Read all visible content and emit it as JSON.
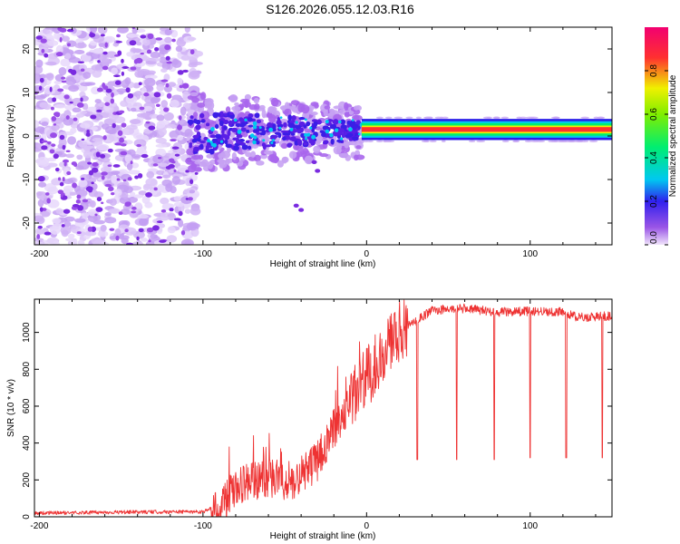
{
  "title": "S126.2026.055.12.03.R16",
  "chart_data": [
    {
      "type": "heatmap",
      "xlabel": "Height of straight line (km)",
      "ylabel": "Frequency (Hz)",
      "xlim": [
        -203,
        150
      ],
      "ylim": [
        -25,
        25
      ],
      "x_ticks": [
        "-200",
        "-100",
        "0",
        "100"
      ],
      "x_tick_values": [
        -200,
        -100,
        0,
        100
      ],
      "y_ticks": [
        "20",
        "10",
        "0",
        "-10",
        "-20"
      ],
      "y_tick_values": [
        20,
        10,
        0,
        -10,
        -20
      ],
      "colorbar": {
        "label": "Normalized spectral amplitude",
        "range": [
          0,
          1
        ],
        "ticks": [
          "0.0",
          "0.2",
          "0.4",
          "0.6",
          "0.8"
        ],
        "tick_values": [
          0.0,
          0.2,
          0.4,
          0.6,
          0.8
        ]
      },
      "regions": [
        {
          "name": "noise",
          "x_range": [
            -203,
            -103
          ],
          "freq_range": [
            -25,
            25
          ],
          "amplitude": 0.1
        },
        {
          "name": "transition",
          "x_range": [
            -108,
            -3
          ],
          "freq_range": [
            -8,
            10
          ],
          "amplitude": 0.25
        },
        {
          "name": "tone",
          "x_range": [
            -3,
            150
          ],
          "freq_center": 1.5,
          "freq_halfwidth": 1.8,
          "amplitude": 0.95
        }
      ]
    },
    {
      "type": "line",
      "xlabel": "Height of straight line (km)",
      "ylabel": "SNR (10 * v/v)",
      "xlim": [
        -203,
        150
      ],
      "ylim": [
        0,
        1180
      ],
      "x_ticks": [
        "-200",
        "-100",
        "0",
        "100"
      ],
      "x_tick_values": [
        -200,
        -100,
        0,
        100
      ],
      "y_ticks": [
        "0",
        "200",
        "400",
        "600",
        "800",
        "1000"
      ],
      "y_tick_values": [
        0,
        200,
        400,
        600,
        800,
        1000
      ],
      "color": "#ee3333",
      "profile": [
        [
          -203,
          20
        ],
        [
          -150,
          25
        ],
        [
          -100,
          28
        ],
        [
          -90,
          60
        ],
        [
          -80,
          150
        ],
        [
          -70,
          200
        ],
        [
          -60,
          210
        ],
        [
          -50,
          190
        ],
        [
          -40,
          220
        ],
        [
          -30,
          300
        ],
        [
          -20,
          480
        ],
        [
          -10,
          620
        ],
        [
          0,
          750
        ],
        [
          10,
          900
        ],
        [
          20,
          1000
        ],
        [
          30,
          1060
        ],
        [
          40,
          1120
        ],
        [
          60,
          1130
        ],
        [
          80,
          1110
        ],
        [
          100,
          1115
        ],
        [
          120,
          1110
        ],
        [
          130,
          1080
        ],
        [
          150,
          1090
        ]
      ],
      "dips": [
        {
          "x": 31,
          "y": 310
        },
        {
          "x": 55,
          "y": 310
        },
        {
          "x": 78,
          "y": 310
        },
        {
          "x": 100,
          "y": 320
        },
        {
          "x": 122,
          "y": 320
        },
        {
          "x": 144,
          "y": 320
        }
      ]
    }
  ]
}
